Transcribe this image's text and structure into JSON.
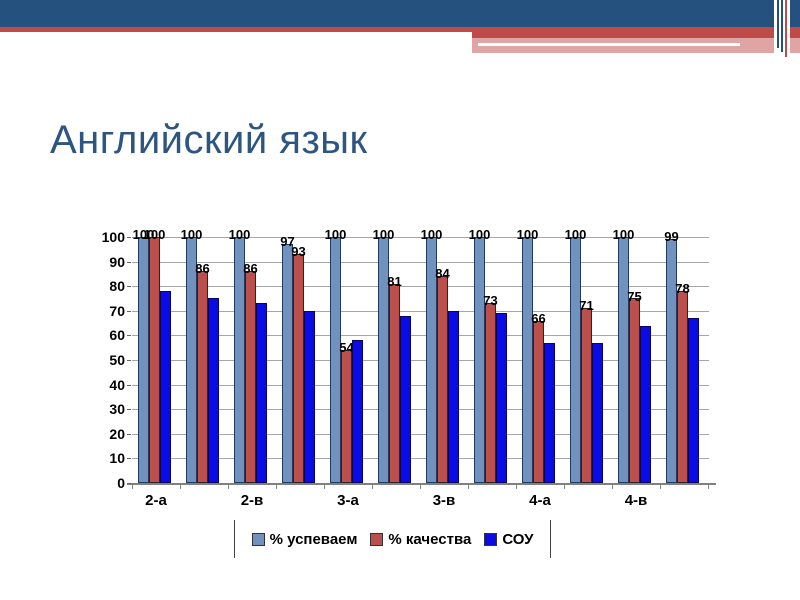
{
  "slide": {
    "title": "Английский язык"
  },
  "theme": {
    "header_navy": "#25517E",
    "header_red": "#BE4B48",
    "header_pink": "#DFA5A4",
    "title_color": "#2D5581"
  },
  "chart_data": {
    "type": "bar",
    "title": "",
    "xlabel": "",
    "ylabel": "",
    "ylim": [
      0,
      100
    ],
    "yticks": [
      0,
      10,
      20,
      30,
      40,
      50,
      60,
      70,
      80,
      90,
      100
    ],
    "grid": true,
    "legend_position": "bottom",
    "visible_category_labels": [
      "2-а",
      "2-в",
      "3-а",
      "3-в",
      "4-а",
      "4-в"
    ],
    "group_labels": [
      "2-а",
      "",
      "2-в",
      "",
      "3-а",
      "",
      "3-в",
      "",
      "4-а",
      "",
      "4-в",
      ""
    ],
    "series": [
      {
        "name": "% успеваем",
        "color": "#7191BE",
        "border": "#1F3A5F",
        "data_labels": true,
        "values": [
          100,
          100,
          100,
          97,
          100,
          100,
          100,
          100,
          100,
          100,
          100,
          99
        ]
      },
      {
        "name": "% качества",
        "color": "#B9504C",
        "border": "#33201F",
        "data_labels": true,
        "values": [
          100,
          86,
          86,
          93,
          54,
          81,
          84,
          73,
          66,
          71,
          75,
          78
        ]
      },
      {
        "name": "СОУ",
        "color": "#0B0BE6",
        "border": "#050563",
        "data_labels": false,
        "values": [
          78,
          75,
          73,
          70,
          58,
          68,
          70,
          69,
          57,
          57,
          64,
          67
        ]
      }
    ]
  }
}
